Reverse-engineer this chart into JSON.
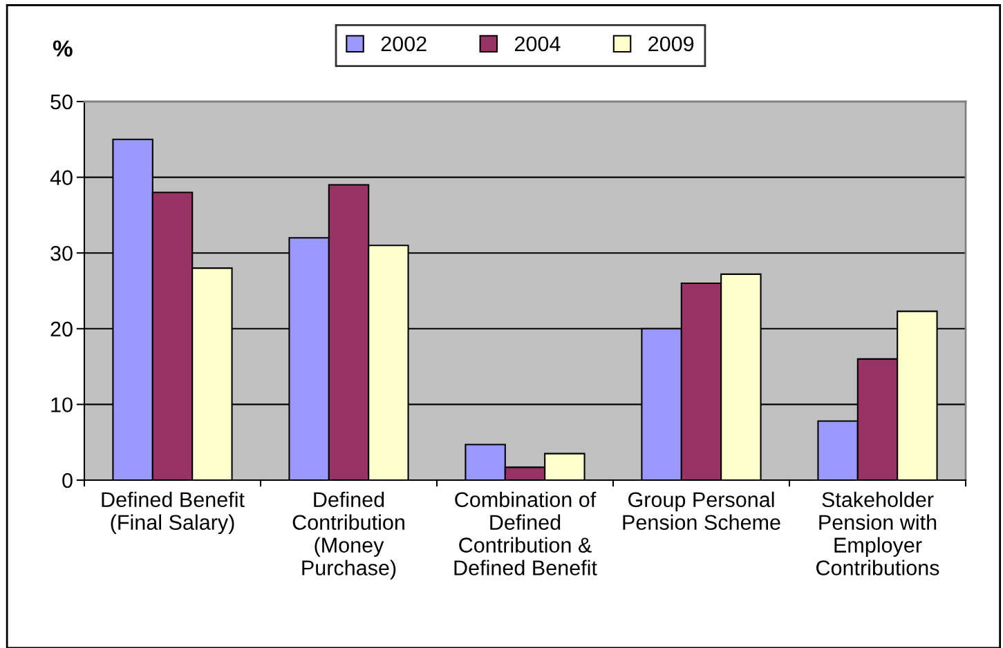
{
  "chart_data": {
    "type": "bar",
    "ylabel": "%",
    "categories": [
      "Defined Benefit\n(Final Salary)",
      "Defined\nContribution\n(Money\nPurchase)",
      "Combination of\nDefined\nContribution &\nDefined Benefit",
      "Group Personal\nPension Scheme",
      "Stakeholder\nPension with\nEmployer\nContributions"
    ],
    "series": [
      {
        "name": "2002",
        "color": "#9999ff",
        "values": [
          45,
          32,
          4.7,
          20,
          7.8
        ]
      },
      {
        "name": "2004",
        "color": "#993366",
        "values": [
          38,
          39,
          1.7,
          26,
          16
        ]
      },
      {
        "name": "2009",
        "color": "#ffffcc",
        "values": [
          28,
          31,
          3.5,
          27.2,
          22.3
        ]
      }
    ],
    "ylim": [
      0,
      50
    ],
    "yticks": [
      0,
      10,
      20,
      30,
      40,
      50
    ],
    "grid": "y",
    "legend": "top"
  }
}
